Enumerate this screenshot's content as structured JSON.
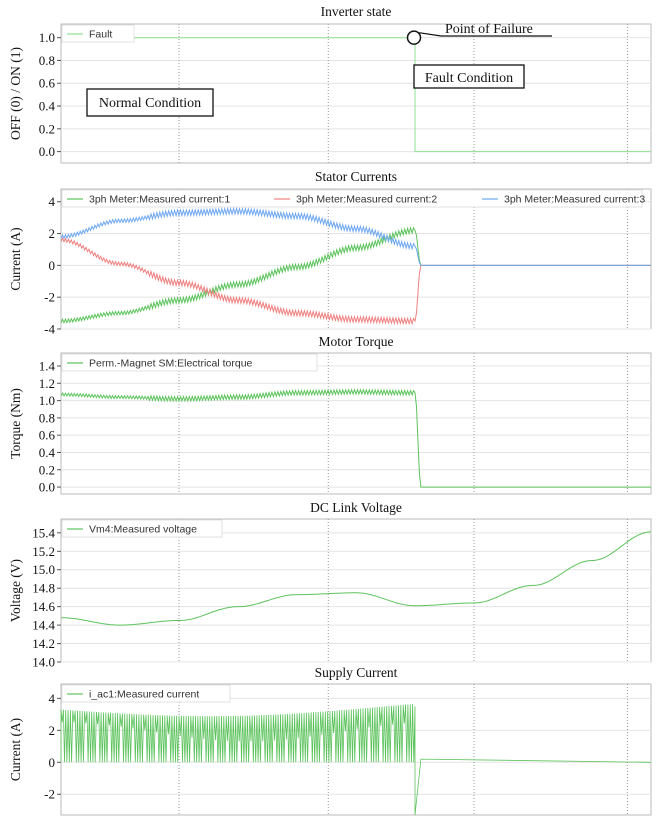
{
  "chart_data": [
    {
      "type": "line",
      "title": "Inverter state",
      "ylabel": "OFF (0) / ON (1)",
      "ylim": [
        -0.1,
        1.12
      ],
      "yticks": [
        0.0,
        0.2,
        0.4,
        0.6,
        0.8,
        1.0
      ],
      "ytick_labels": [
        "0.0",
        "0.2",
        "0.4",
        "0.6",
        "0.8",
        "1.0"
      ],
      "xlim": [
        0,
        1
      ],
      "grid": true,
      "legend_position": "top-left",
      "series": [
        {
          "name": "Fault",
          "color": "#90e090",
          "x": [
            0,
            0.6,
            0.6,
            1
          ],
          "y": [
            1,
            1,
            0,
            0
          ]
        }
      ],
      "annotations": [
        {
          "text": "Point of Failure",
          "x": 0.6,
          "y": 1.0
        },
        {
          "text": "Fault Condition",
          "x": 0.62,
          "y": 0.77
        },
        {
          "text": "Normal Condition",
          "x": 0.05,
          "y": 0.5
        }
      ]
    },
    {
      "type": "line",
      "title": "Stator Currents",
      "ylabel": "Current (A)",
      "ylim": [
        -4,
        4.8
      ],
      "yticks": [
        -4,
        -2,
        0,
        2,
        4
      ],
      "ytick_labels": [
        "-4",
        "-2",
        "0",
        "2",
        "4"
      ],
      "xlim": [
        0,
        1
      ],
      "grid": true,
      "legend_position": "top",
      "series": [
        {
          "name": "3ph Meter:Measured current:1",
          "color": "#5cc35c",
          "x": [
            0,
            0.1,
            0.2,
            0.3,
            0.4,
            0.5,
            0.6,
            0.61,
            1
          ],
          "y": [
            -3.5,
            -3.0,
            -2.2,
            -1.2,
            -0.1,
            1.1,
            2.2,
            0,
            0
          ]
        },
        {
          "name": "3ph Meter:Measured current:2",
          "color": "#f08080",
          "x": [
            0,
            0.1,
            0.2,
            0.3,
            0.4,
            0.5,
            0.6,
            0.61,
            1
          ],
          "y": [
            1.6,
            0.1,
            -1.1,
            -2.2,
            -3.0,
            -3.4,
            -3.5,
            0,
            0
          ]
        },
        {
          "name": "3ph Meter:Measured current:3",
          "color": "#6fa8f0",
          "x": [
            0,
            0.1,
            0.2,
            0.3,
            0.4,
            0.5,
            0.6,
            0.61,
            1
          ],
          "y": [
            1.8,
            2.8,
            3.3,
            3.4,
            3.1,
            2.3,
            1.2,
            0,
            0
          ]
        }
      ]
    },
    {
      "type": "line",
      "title": "Motor Torque",
      "ylabel": "Torque (Nm)",
      "ylim": [
        -0.08,
        1.55
      ],
      "yticks": [
        0.0,
        0.2,
        0.4,
        0.6,
        0.8,
        1.0,
        1.2,
        1.4
      ],
      "ytick_labels": [
        "0.0",
        "0.2",
        "0.4",
        "0.6",
        "0.8",
        "1.0",
        "1.2",
        "1.4"
      ],
      "xlim": [
        0,
        1
      ],
      "grid": true,
      "legend_position": "top-left",
      "series": [
        {
          "name": "Perm.-Magnet SM:Electrical torque",
          "color": "#5cc35c",
          "x": [
            0,
            0.1,
            0.2,
            0.3,
            0.4,
            0.5,
            0.6,
            0.61,
            1
          ],
          "y": [
            1.07,
            1.04,
            1.02,
            1.04,
            1.09,
            1.1,
            1.09,
            0,
            0
          ]
        }
      ]
    },
    {
      "type": "line",
      "title": "DC Link Voltage",
      "ylabel": "Voltage (V)",
      "ylim": [
        14.0,
        15.55
      ],
      "yticks": [
        14.0,
        14.2,
        14.4,
        14.6,
        14.8,
        15.0,
        15.2,
        15.4
      ],
      "ytick_labels": [
        "14.0",
        "14.2",
        "14.4",
        "14.6",
        "14.8",
        "15.0",
        "15.2",
        "15.4"
      ],
      "xlim": [
        0,
        1
      ],
      "grid": true,
      "legend_position": "top-left",
      "series": [
        {
          "name": "Vm4:Measured voltage",
          "color": "#5cc35c",
          "x": [
            0,
            0.1,
            0.2,
            0.3,
            0.4,
            0.5,
            0.6,
            0.7,
            0.8,
            0.9,
            1.0
          ],
          "y": [
            14.48,
            14.4,
            14.45,
            14.6,
            14.73,
            14.75,
            14.61,
            14.64,
            14.83,
            15.1,
            15.41
          ]
        }
      ]
    },
    {
      "type": "line",
      "title": "Supply Current",
      "ylabel": "Current (A)",
      "ylim": [
        -3.3,
        4.9
      ],
      "yticks": [
        -2,
        0,
        2,
        4
      ],
      "ytick_labels": [
        "-2",
        "0",
        "2",
        "4"
      ],
      "xlim": [
        0,
        1
      ],
      "grid": true,
      "legend_position": "top-left",
      "series": [
        {
          "name": "i_ac1:Measured current",
          "color": "#5cc35c",
          "x": [
            0,
            0.6
          ],
          "y_upper": [
            3.5,
            3.5
          ],
          "y_lower": [
            0,
            0
          ],
          "x_after": [
            0.6,
            0.61,
            1
          ],
          "y_after": [
            -3.3,
            0.2,
            0
          ]
        }
      ]
    }
  ]
}
